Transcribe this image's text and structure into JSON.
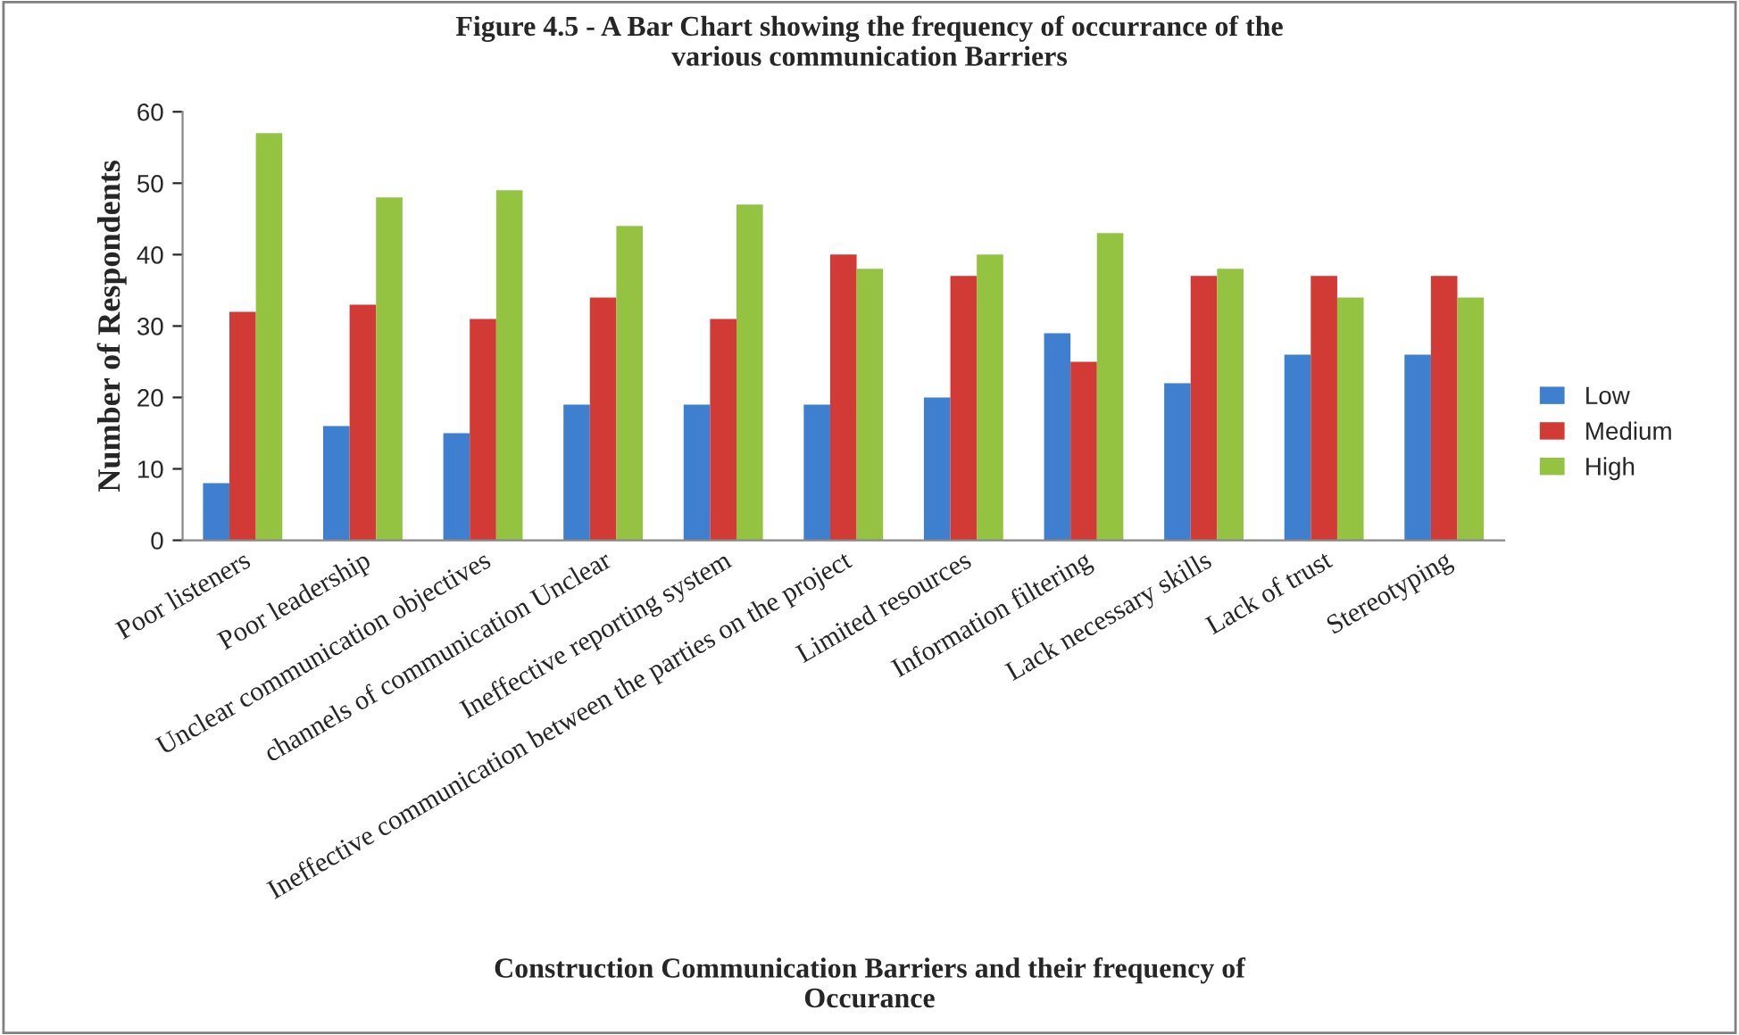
{
  "chart_data": {
    "type": "bar",
    "title": "Figure 4.5 - A Bar Chart showing the frequency of occurrance of the\nvarious communication Barriers",
    "xlabel": "Construction Communication Barriers and their frequency of\nOccurance",
    "ylabel": "Number of Respondents",
    "categories": [
      "Poor listeners",
      "Poor leadership",
      "Unclear communication objectives",
      "channels of communication Unclear",
      "Ineffective reporting system",
      "Ineffective communication between the parties on the project",
      "Limited resources",
      "Information filtering",
      "Lack necessary skills",
      "Lack of trust",
      "Stereotyping"
    ],
    "series": [
      {
        "name": "Low",
        "color": "#3f7fd0",
        "values": [
          8,
          16,
          15,
          19,
          19,
          19,
          20,
          29,
          22,
          26,
          26
        ]
      },
      {
        "name": "Medium",
        "color": "#d13a35",
        "values": [
          32,
          33,
          31,
          34,
          31,
          40,
          37,
          25,
          37,
          37,
          37
        ]
      },
      {
        "name": "High",
        "color": "#94c241",
        "values": [
          57,
          48,
          49,
          44,
          47,
          38,
          40,
          43,
          38,
          34,
          34
        ]
      }
    ],
    "ylim": [
      0,
      60
    ],
    "yticks": [
      0,
      10,
      20,
      30,
      40,
      50,
      60
    ],
    "grid": false,
    "legend": "right"
  }
}
